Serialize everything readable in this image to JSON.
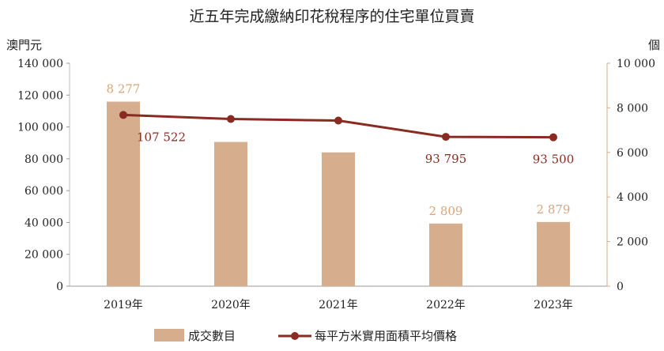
{
  "chart_data": {
    "type": "bar",
    "title": "近五年完成繳納印花稅程序的住宅單位買賣",
    "y_left_unit": "澳門元",
    "y_right_unit": "個",
    "categories": [
      "2019年",
      "2020年",
      "2021年",
      "2022年",
      "2023年"
    ],
    "y_left_ticks": [
      "0",
      "20 000",
      "40 000",
      "60 000",
      "80 000",
      "100 000",
      "120 000",
      "140 000"
    ],
    "y_right_ticks": [
      "0",
      "2 000",
      "4 000",
      "6 000",
      "8 000",
      "10 000"
    ],
    "ylim_left": [
      0,
      140000
    ],
    "ylim_right": [
      0,
      10000
    ],
    "series": [
      {
        "name": "成交數目",
        "kind": "bar",
        "axis": "right",
        "color": "#d6ae8e",
        "values": [
          8277,
          6470,
          6000,
          2809,
          2879
        ],
        "labels": [
          "8 277",
          "",
          "",
          "2 809",
          "2 879"
        ]
      },
      {
        "name": "每平方米實用面積平均價格",
        "kind": "line",
        "axis": "left",
        "color": "#8a2b22",
        "values": [
          107522,
          105000,
          104000,
          93795,
          93500
        ],
        "labels": [
          "107 522",
          "",
          "",
          "93 795",
          "93 500"
        ]
      }
    ],
    "legend_position": "bottom",
    "grid": false
  }
}
